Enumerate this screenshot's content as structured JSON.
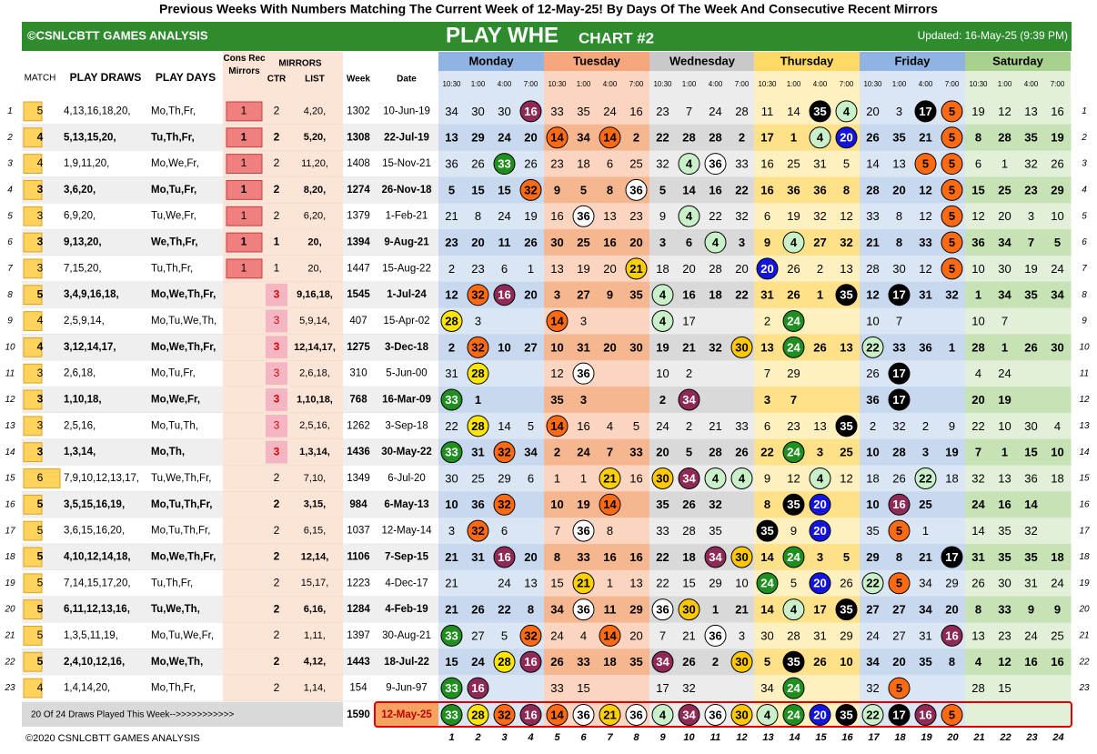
{
  "header": {
    "title": "Previous Weeks With Numbers Matching The Current Week of 12-May-25! By Days Of The Week And Consecutive Recent Mirrors",
    "brand": "©CSNLCBTT GAMES ANALYSIS",
    "game": "PLAY WHE",
    "chart": "CHART #2",
    "updated": "Updated: 16-May-25 (9:39 PM)"
  },
  "columns": {
    "match": "MATCH",
    "draws": "PLAY DRAWS",
    "days": "PLAY DAYS",
    "cons": "Cons Rec Mirrors",
    "mirrors": "MIRRORS",
    "ctr": "CTR",
    "list": "LIST",
    "week": "Week",
    "date": "Date",
    "day_names": [
      "Monday",
      "Tuesday",
      "Wednesday",
      "Thursday",
      "Friday",
      "Saturday"
    ],
    "times": [
      "10:30",
      "1:00",
      "4:00",
      "7:00"
    ]
  },
  "rows": [
    {
      "n": 1,
      "match": 5,
      "draws": "4,13,16,18,20,",
      "days": "Mo,Th,Fr,",
      "cons": 1,
      "ctr": 2,
      "list": "4,20,",
      "week": 1302,
      "date": "10-Jun-19",
      "values": [
        34,
        30,
        30,
        16,
        33,
        35,
        24,
        16,
        23,
        7,
        24,
        28,
        11,
        14,
        35,
        4,
        20,
        3,
        17,
        5,
        19,
        12,
        13,
        16
      ]
    },
    {
      "n": 2,
      "match": 4,
      "draws": "5,13,15,20,",
      "days": "Tu,Th,Fr,",
      "cons": 1,
      "ctr": 2,
      "list": "5,20,",
      "week": 1308,
      "date": "22-Jul-19",
      "values": [
        13,
        29,
        24,
        20,
        14,
        34,
        14,
        2,
        22,
        28,
        28,
        2,
        17,
        1,
        4,
        20,
        26,
        35,
        21,
        5,
        8,
        28,
        35,
        19
      ]
    },
    {
      "n": 3,
      "match": 4,
      "draws": "1,9,11,20,",
      "days": "Mo,We,Fr,",
      "cons": 1,
      "ctr": 2,
      "list": "11,20,",
      "week": 1408,
      "date": "15-Nov-21",
      "values": [
        36,
        26,
        33,
        26,
        23,
        18,
        6,
        25,
        32,
        4,
        36,
        33,
        16,
        25,
        31,
        5,
        14,
        13,
        5,
        5,
        6,
        1,
        32,
        26
      ]
    },
    {
      "n": 4,
      "match": 3,
      "draws": "3,6,20,",
      "days": "Mo,Tu,Fr,",
      "cons": 1,
      "ctr": 2,
      "list": "8,20,",
      "week": 1274,
      "date": "26-Nov-18",
      "values": [
        5,
        15,
        15,
        32,
        9,
        5,
        8,
        36,
        5,
        14,
        16,
        22,
        16,
        36,
        36,
        8,
        28,
        20,
        12,
        5,
        15,
        25,
        23,
        29
      ]
    },
    {
      "n": 5,
      "match": 3,
      "draws": "6,9,20,",
      "days": "Tu,We,Fr,",
      "cons": 1,
      "ctr": 2,
      "list": "6,20,",
      "week": 1379,
      "date": "1-Feb-21",
      "values": [
        21,
        8,
        24,
        19,
        16,
        36,
        13,
        23,
        9,
        4,
        22,
        32,
        6,
        19,
        32,
        12,
        33,
        8,
        12,
        5,
        12,
        20,
        3,
        10
      ]
    },
    {
      "n": 6,
      "match": 3,
      "draws": "9,13,20,",
      "days": "We,Th,Fr,",
      "cons": 1,
      "ctr": 1,
      "list": "20,",
      "week": 1394,
      "date": "9-Aug-21",
      "values": [
        23,
        20,
        11,
        26,
        30,
        25,
        16,
        20,
        3,
        6,
        4,
        3,
        9,
        4,
        27,
        32,
        21,
        8,
        33,
        5,
        36,
        34,
        7,
        5
      ]
    },
    {
      "n": 7,
      "match": 3,
      "draws": "7,15,20,",
      "days": "Tu,Th,Fr,",
      "cons": 1,
      "ctr": 1,
      "list": "20,",
      "week": 1447,
      "date": "15-Aug-22",
      "values": [
        2,
        23,
        6,
        1,
        13,
        19,
        20,
        21,
        18,
        20,
        28,
        20,
        20,
        26,
        2,
        13,
        28,
        30,
        12,
        5,
        10,
        30,
        19,
        24
      ]
    },
    {
      "n": 8,
      "match": 5,
      "draws": "3,4,9,16,18,",
      "days": "Mo,We,Th,Fr,",
      "ctr": 3,
      "list": "9,16,18,",
      "week": 1545,
      "date": "1-Jul-24",
      "values": [
        12,
        32,
        16,
        20,
        3,
        27,
        9,
        35,
        4,
        16,
        18,
        22,
        31,
        26,
        1,
        35,
        12,
        17,
        31,
        32,
        1,
        34,
        35,
        34
      ]
    },
    {
      "n": 9,
      "match": 4,
      "draws": "2,5,9,14,",
      "days": "Mo,Tu,We,Th,",
      "ctr": 3,
      "list": "5,9,14,",
      "week": 407,
      "date": "15-Apr-02",
      "values": [
        28,
        3,
        null,
        null,
        14,
        3,
        null,
        null,
        4,
        17,
        null,
        null,
        2,
        24,
        null,
        null,
        10,
        7,
        null,
        null,
        10,
        7,
        null,
        null
      ]
    },
    {
      "n": 10,
      "match": 4,
      "draws": "3,12,14,17,",
      "days": "Mo,We,Th,Fr,",
      "ctr": 3,
      "list": "12,14,17,",
      "week": 1275,
      "date": "3-Dec-18",
      "values": [
        2,
        32,
        10,
        27,
        10,
        31,
        20,
        30,
        19,
        21,
        32,
        30,
        13,
        24,
        26,
        13,
        22,
        33,
        36,
        1,
        28,
        1,
        26,
        30
      ]
    },
    {
      "n": 11,
      "match": 3,
      "draws": "2,6,18,",
      "days": "Mo,Tu,Fr,",
      "ctr": 3,
      "list": "2,6,18,",
      "week": 310,
      "date": "5-Jun-00",
      "values": [
        31,
        28,
        null,
        null,
        12,
        36,
        null,
        null,
        10,
        2,
        null,
        null,
        7,
        29,
        null,
        null,
        26,
        17,
        null,
        null,
        4,
        24,
        null,
        null
      ]
    },
    {
      "n": 12,
      "match": 3,
      "draws": "1,10,18,",
      "days": "Mo,We,Fr,",
      "ctr": 3,
      "list": "1,10,18,",
      "week": 768,
      "date": "16-Mar-09",
      "values": [
        33,
        1,
        null,
        null,
        35,
        3,
        null,
        null,
        2,
        34,
        null,
        null,
        3,
        7,
        null,
        null,
        36,
        17,
        null,
        null,
        20,
        19,
        null,
        null
      ]
    },
    {
      "n": 13,
      "match": 3,
      "draws": "2,5,16,",
      "days": "Mo,Tu,Th,",
      "ctr": 3,
      "list": "2,5,16,",
      "week": 1262,
      "date": "3-Sep-18",
      "values": [
        22,
        28,
        14,
        5,
        14,
        16,
        4,
        5,
        24,
        2,
        21,
        33,
        6,
        23,
        13,
        35,
        2,
        32,
        2,
        9,
        22,
        10,
        30,
        4
      ]
    },
    {
      "n": 14,
      "match": 3,
      "draws": "1,3,14,",
      "days": "Mo,Th,",
      "ctr": 3,
      "list": "1,3,14,",
      "week": 1436,
      "date": "30-May-22",
      "values": [
        33,
        31,
        32,
        34,
        2,
        24,
        7,
        33,
        20,
        5,
        28,
        26,
        22,
        24,
        3,
        25,
        10,
        28,
        3,
        19,
        7,
        1,
        15,
        10
      ]
    },
    {
      "n": 15,
      "match": 6,
      "draws": "7,9,10,12,13,17,",
      "days": "Tu,We,Th,Fr,",
      "ctr": 2,
      "list": "7,10,",
      "week": 1349,
      "date": "6-Jul-20",
      "values": [
        30,
        25,
        29,
        6,
        1,
        1,
        21,
        16,
        30,
        34,
        4,
        4,
        9,
        12,
        4,
        12,
        18,
        26,
        22,
        18,
        32,
        13,
        36,
        18
      ]
    },
    {
      "n": 16,
      "match": 5,
      "draws": "3,5,15,16,19,",
      "days": "Mo,Tu,Th,Fr,",
      "ctr": 2,
      "list": "3,15,",
      "week": 984,
      "date": "6-May-13",
      "values": [
        10,
        36,
        32,
        null,
        10,
        19,
        14,
        null,
        35,
        26,
        32,
        null,
        8,
        35,
        20,
        null,
        10,
        16,
        25,
        null,
        24,
        16,
        14,
        null
      ]
    },
    {
      "n": 17,
      "match": 5,
      "draws": "3,6,15,16,20,",
      "days": "Mo,Tu,Th,Fr,",
      "ctr": 2,
      "list": "6,15,",
      "week": 1037,
      "date": "12-May-14",
      "values": [
        3,
        32,
        6,
        null,
        7,
        36,
        8,
        null,
        33,
        28,
        35,
        null,
        35,
        9,
        20,
        null,
        35,
        5,
        1,
        null,
        14,
        35,
        32,
        null
      ]
    },
    {
      "n": 18,
      "match": 5,
      "draws": "4,10,12,14,18,",
      "days": "Mo,We,Th,Fr,",
      "ctr": 2,
      "list": "12,14,",
      "week": 1106,
      "date": "7-Sep-15",
      "values": [
        21,
        31,
        16,
        20,
        8,
        33,
        16,
        16,
        22,
        18,
        34,
        30,
        14,
        24,
        3,
        5,
        29,
        8,
        21,
        17,
        31,
        35,
        35,
        18
      ]
    },
    {
      "n": 19,
      "match": 5,
      "draws": "7,14,15,17,20,",
      "days": "Tu,Th,Fr,",
      "ctr": 2,
      "list": "15,17,",
      "week": 1223,
      "date": "4-Dec-17",
      "values": [
        21,
        null,
        24,
        13,
        15,
        21,
        1,
        13,
        22,
        15,
        29,
        10,
        24,
        5,
        20,
        26,
        22,
        5,
        34,
        29,
        26,
        30,
        31,
        24
      ]
    },
    {
      "n": 20,
      "match": 5,
      "draws": "6,11,12,13,16,",
      "days": "Tu,We,Th,",
      "ctr": 2,
      "list": "6,16,",
      "week": 1284,
      "date": "4-Feb-19",
      "values": [
        21,
        26,
        22,
        8,
        34,
        36,
        11,
        29,
        36,
        30,
        1,
        21,
        14,
        4,
        17,
        35,
        27,
        27,
        34,
        20,
        8,
        33,
        9,
        9
      ]
    },
    {
      "n": 21,
      "match": 5,
      "draws": "1,3,5,11,19,",
      "days": "Mo,Tu,We,Fr,",
      "ctr": 2,
      "list": "1,11,",
      "week": 1397,
      "date": "30-Aug-21",
      "values": [
        33,
        27,
        5,
        32,
        24,
        4,
        14,
        20,
        7,
        21,
        36,
        3,
        30,
        28,
        31,
        29,
        24,
        27,
        31,
        16,
        13,
        23,
        24,
        25
      ]
    },
    {
      "n": 22,
      "match": 5,
      "draws": "2,4,10,12,16,",
      "days": "Mo,We,Th,",
      "ctr": 2,
      "list": "4,12,",
      "week": 1443,
      "date": "18-Jul-22",
      "values": [
        15,
        24,
        28,
        16,
        26,
        33,
        18,
        35,
        34,
        26,
        2,
        30,
        5,
        35,
        26,
        10,
        34,
        20,
        35,
        8,
        4,
        12,
        16,
        16
      ]
    },
    {
      "n": 23,
      "match": 4,
      "draws": "1,4,14,20,",
      "days": "Mo,Th,Fr,",
      "ctr": 2,
      "list": "1,14,",
      "week": 154,
      "date": "9-Jun-97",
      "values": [
        33,
        16,
        null,
        null,
        33,
        15,
        null,
        null,
        17,
        32,
        null,
        null,
        34,
        24,
        null,
        null,
        32,
        5,
        null,
        null,
        28,
        15,
        null,
        null
      ]
    }
  ],
  "current": {
    "label": "20 Of 24 Draws Played This Week-->>>>>>>>>>>",
    "week": 1590,
    "date": "12-May-25",
    "values": [
      33,
      28,
      32,
      16,
      14,
      36,
      21,
      36,
      4,
      34,
      36,
      30,
      4,
      24,
      20,
      35,
      22,
      17,
      16,
      5,
      null,
      null,
      null,
      null
    ]
  },
  "col_numbers": [
    1,
    2,
    3,
    4,
    5,
    6,
    7,
    8,
    9,
    10,
    11,
    12,
    13,
    14,
    15,
    16,
    17,
    18,
    19,
    20,
    21,
    22,
    23,
    24
  ],
  "footer": "©2020 CSNLCBTT GAMES ANALYSIS",
  "ball_colors": {
    "33": "#1f8f1f",
    "28": "#ffe600",
    "32": "#ff6a13",
    "16": "#8e2a55",
    "14": "#ff6a13",
    "36": "#ffffff",
    "21": "#ffd000",
    "4": "#c9f0c9",
    "34": "#8e2a55",
    "30": "#ffc800",
    "24": "#1f8f1f",
    "20": "#1414e0",
    "35": "#000000",
    "22": "#c9f0c9",
    "17": "#000000",
    "5": "#ff6a13"
  },
  "day_colors": [
    [
      "#8fb4e3",
      "#dbe6f4",
      "#c8d8ef"
    ],
    [
      "#f4a77d",
      "#fbd5bf",
      "#f6b690"
    ],
    [
      "#c9c9c9",
      "#ececec",
      "#d9d9d9"
    ],
    [
      "#ffd966",
      "#fff0c0",
      "#ffe18a"
    ],
    [
      "#8fb4e3",
      "#dbe6f4",
      "#c8d8ef"
    ],
    [
      "#a9d18e",
      "#e2efd9",
      "#c7e2b4"
    ]
  ]
}
